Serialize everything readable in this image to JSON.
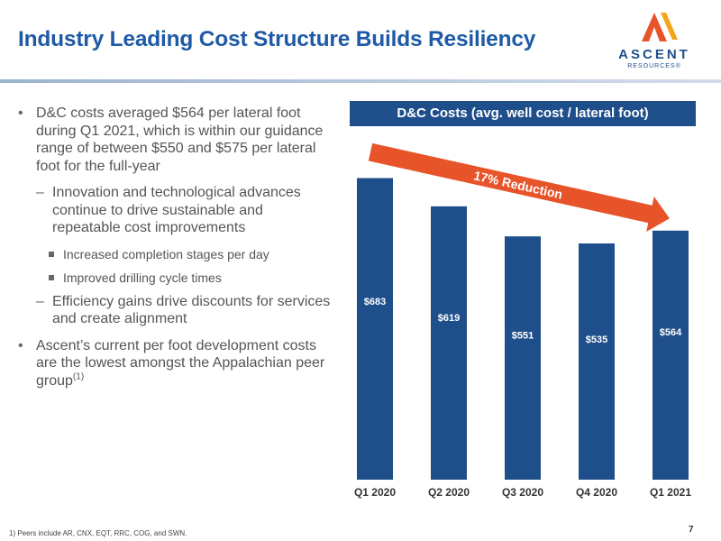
{
  "slide": {
    "title": "Industry Leading Cost Structure Builds Resiliency",
    "page_number": "7",
    "footnote": "1) Peers include AR, CNX, EQT, RRC, COG, and SWN."
  },
  "logo": {
    "name": "ASCENT",
    "subtitle": "RESOURCES®",
    "colors": [
      "#e8542a",
      "#f2a51a",
      "#1f4f8a"
    ]
  },
  "bullets": {
    "item1": "D&C costs averaged $564 per lateral foot during Q1 2021, which is within our guidance range of between $550 and $575 per lateral foot for the full-year",
    "item1_sub1": "Innovation and technological advances continue to drive sustainable and repeatable cost improvements",
    "item1_sub1_a": "Increased completion stages per day",
    "item1_sub1_b": "Improved drilling cycle times",
    "item1_sub2": "Efficiency gains drive discounts for services and create alignment",
    "item2": "Ascent’s current per foot development costs are the lowest amongst the Appalachian peer group",
    "item2_note": "(1)"
  },
  "chart_data": {
    "type": "bar",
    "title": "D&C Costs (avg. well cost / lateral foot)",
    "categories": [
      "Q1 2020",
      "Q2 2020",
      "Q3 2020",
      "Q4 2020",
      "Q1 2021"
    ],
    "values": [
      683,
      619,
      551,
      535,
      564
    ],
    "value_labels": [
      "$683",
      "$619",
      "$551",
      "$535",
      "$564"
    ],
    "ylim": [
      0,
      780
    ],
    "grid": false,
    "bar_color": "#1f4f8a",
    "annotation": "17% Reduction",
    "annotation_color": "#e8542a"
  }
}
